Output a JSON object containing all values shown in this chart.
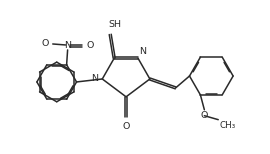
{
  "background": "#ffffff",
  "line_color": "#2a2a2a",
  "line_width": 1.1,
  "font_size": 6.8,
  "font_family": "DejaVu Sans",
  "figsize": [
    2.7,
    1.54
  ],
  "dpi": 100,
  "xlim": [
    0,
    2.7
  ],
  "ylim": [
    0,
    1.54
  ]
}
